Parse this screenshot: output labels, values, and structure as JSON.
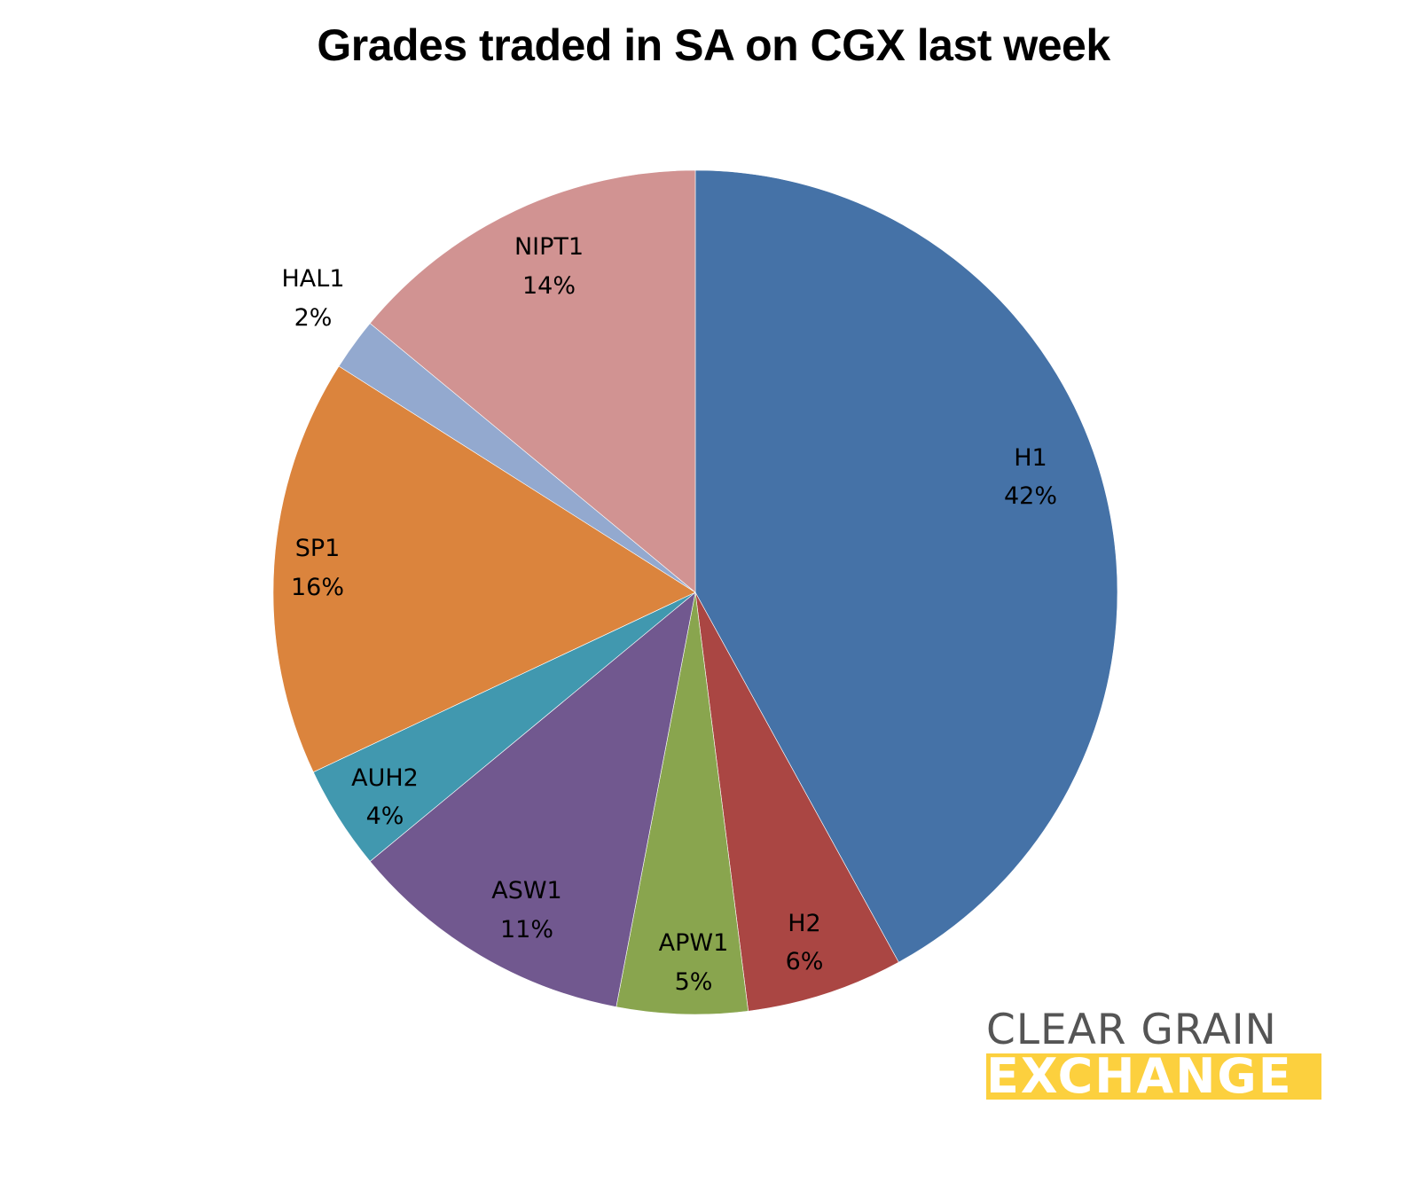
{
  "chart_data": {
    "type": "pie",
    "title": "Grades traded in SA on CGX last week",
    "start_angle_deg": 0,
    "direction": "clockwise",
    "categories": [
      "H1",
      "H2",
      "APW1",
      "ASW1",
      "AUH2",
      "SP1",
      "HAL1",
      "NIPT1"
    ],
    "values": [
      42,
      6,
      5,
      11,
      4,
      16,
      2,
      14
    ],
    "labels": [
      "42%",
      "6%",
      "5%",
      "11%",
      "4%",
      "16%",
      "2%",
      "14%"
    ],
    "colors": [
      "#4572a7",
      "#aa4643",
      "#89a54e",
      "#71588f",
      "#4198af",
      "#db843d",
      "#93a9cf",
      "#d19392"
    ],
    "legend": "none (labels on slices)"
  },
  "title": "Grades traded in SA on CGX last week",
  "slices": [
    {
      "name": "H1",
      "pct": "42%"
    },
    {
      "name": "H2",
      "pct": "6%"
    },
    {
      "name": "APW1",
      "pct": "5%"
    },
    {
      "name": "ASW1",
      "pct": "11%"
    },
    {
      "name": "AUH2",
      "pct": "4%"
    },
    {
      "name": "SP1",
      "pct": "16%"
    },
    {
      "name": "HAL1",
      "pct": "2%"
    },
    {
      "name": "NIPT1",
      "pct": "14%"
    }
  ],
  "logo": {
    "line1": "CLEAR GRAIN",
    "line2": "EXCHANGE",
    "accent": "#fcd03e",
    "text_color": "#555555"
  }
}
